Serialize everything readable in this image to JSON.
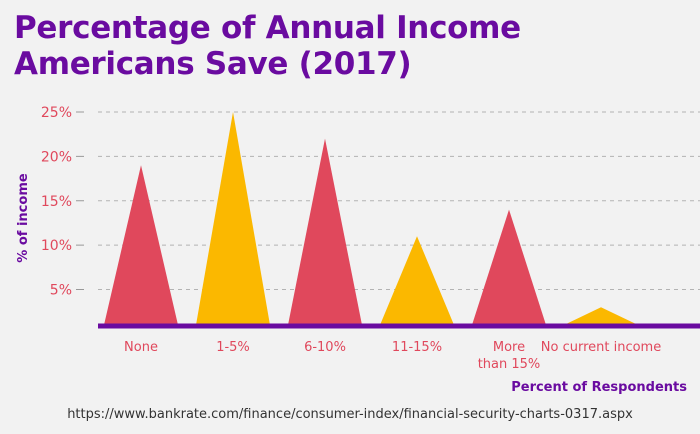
{
  "title_lines": [
    "Percentage of Annual Income",
    "Americans Save (2017)"
  ],
  "source": "https://www.bankrate.com/finance/consumer-index/financial-security-charts-0317.aspx",
  "colors": {
    "title": "#6a0ba0",
    "pink": "#e0485c",
    "gold": "#fbb800",
    "axis": "#6a0ba0",
    "tick_text": "#e0485c"
  },
  "chart_data": {
    "type": "bar",
    "title": "Percentage of Annual Income Americans Save (2017)",
    "xlabel": "Percent of Respondents",
    "ylabel": "% of income",
    "categories": [
      "None",
      "1-5%",
      "6-10%",
      "11-15%",
      "More than 15%",
      "No current income"
    ],
    "category_lines": [
      [
        "None"
      ],
      [
        "1-5%"
      ],
      [
        "6-10%"
      ],
      [
        "11-15%"
      ],
      [
        "More",
        "than 15%"
      ],
      [
        "No current income"
      ]
    ],
    "values": [
      19,
      25,
      22,
      11,
      14,
      3
    ],
    "bar_colors": [
      "#e0485c",
      "#fbb800",
      "#e0485c",
      "#fbb800",
      "#e0485c",
      "#fbb800"
    ],
    "yticks": [
      5,
      10,
      15,
      20,
      25
    ],
    "ytick_labels": [
      "5%",
      "10%",
      "15%",
      "20%",
      "25%"
    ],
    "ylim": [
      1,
      25
    ],
    "grid": true
  }
}
